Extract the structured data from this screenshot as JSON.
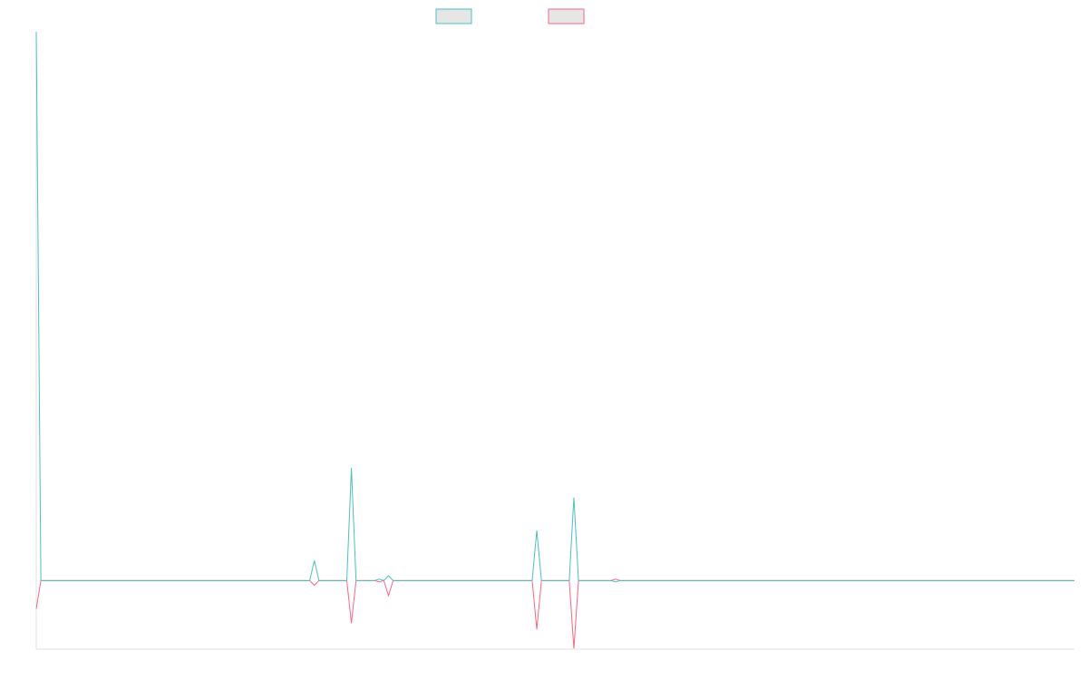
{
  "chart_data": {
    "type": "line",
    "categories": [
      null,
      null,
      null,
      null,
      null,
      null,
      null,
      null,
      null,
      null,
      null,
      null,
      null,
      null,
      null,
      null,
      null,
      null,
      null,
      null,
      null,
      null,
      null,
      null,
      null,
      null,
      null,
      null,
      null,
      null,
      null,
      null,
      null,
      null,
      null,
      null,
      null,
      null,
      null,
      null,
      null,
      null,
      null,
      null,
      null,
      null,
      null,
      null,
      null,
      null,
      null,
      null,
      null,
      null,
      null,
      null,
      null,
      null,
      null,
      null,
      null,
      null,
      null,
      null,
      null,
      null,
      null,
      null,
      null,
      null,
      null,
      null,
      null,
      null,
      null,
      null,
      null,
      null,
      null,
      null,
      null,
      null,
      null,
      null,
      null,
      null,
      null,
      null,
      null,
      null,
      null,
      null,
      null,
      null,
      null,
      null,
      null,
      null,
      null,
      null,
      null,
      null,
      null,
      null,
      null,
      null,
      null,
      null,
      null,
      null,
      null,
      null,
      null,
      null,
      null,
      null,
      null,
      null,
      null,
      null,
      null,
      null,
      null,
      null,
      null,
      null,
      null,
      null,
      null,
      null,
      null,
      null,
      null,
      null,
      null,
      null,
      null,
      null,
      null,
      null,
      null,
      null,
      null,
      null,
      null,
      null,
      null,
      null,
      null,
      null,
      null,
      null,
      null,
      null,
      null,
      null,
      null,
      null,
      null,
      null,
      null,
      null,
      null,
      null,
      null,
      null,
      null,
      null,
      null,
      null,
      null,
      null,
      null,
      null,
      null,
      null,
      null,
      null,
      null,
      null,
      null,
      null,
      null,
      null,
      null,
      null,
      null,
      null,
      null,
      null,
      null,
      null,
      null,
      null,
      null,
      null,
      null,
      null,
      null,
      null,
      null,
      null,
      null,
      null,
      null,
      null,
      null,
      null,
      null,
      null,
      null,
      null,
      null,
      null,
      null,
      null,
      null,
      null,
      null,
      null,
      null,
      null,
      null,
      null,
      null
    ],
    "series": [
      {
        "color": "#4bc0c0",
        "values": [
          800,
          0,
          0,
          0,
          0,
          0,
          0,
          0,
          0,
          0,
          0,
          0,
          0,
          0,
          0,
          0,
          0,
          0,
          0,
          0,
          0,
          0,
          0,
          0,
          0,
          0,
          0,
          0,
          0,
          0,
          0,
          0,
          0,
          0,
          0,
          0,
          0,
          0,
          0,
          0,
          0,
          0,
          0,
          0,
          0,
          0,
          0,
          0,
          0,
          0,
          0,
          0,
          0,
          0,
          0,
          0,
          0,
          0,
          0,
          0,
          29,
          0,
          0,
          0,
          0,
          0,
          0,
          0,
          164,
          0,
          0,
          0,
          0,
          0,
          2,
          0,
          7,
          0,
          0,
          0,
          0,
          0,
          0,
          0,
          0,
          0,
          0,
          0,
          0,
          0,
          0,
          0,
          0,
          0,
          0,
          0,
          0,
          0,
          0,
          0,
          0,
          0,
          0,
          0,
          0,
          0,
          0,
          0,
          73,
          0,
          0,
          0,
          0,
          0,
          0,
          0,
          121,
          0,
          0,
          0,
          0,
          0,
          0,
          0,
          0,
          -2,
          0,
          0,
          0,
          0,
          0,
          0,
          0,
          0,
          0,
          0,
          0,
          0,
          0,
          0,
          0,
          0,
          0,
          0,
          0,
          0,
          0,
          0,
          0,
          0,
          0,
          0,
          0,
          0,
          0,
          0,
          0,
          0,
          0,
          0,
          0,
          0,
          0,
          0,
          0,
          0,
          0,
          0,
          0,
          0,
          0,
          0,
          0,
          0,
          0,
          0,
          0,
          0,
          0,
          0,
          0,
          0,
          0,
          0,
          0,
          0,
          0,
          0,
          0,
          0,
          0,
          0,
          0,
          0,
          0,
          0,
          0,
          0,
          0,
          0,
          0,
          0,
          0,
          0,
          0,
          0,
          0,
          0,
          0,
          0,
          0,
          0,
          0,
          0,
          0,
          0,
          0,
          0,
          0,
          0,
          0,
          0,
          0,
          0,
          0
        ]
      },
      {
        "color": "#ff6384",
        "values": [
          -41,
          0,
          0,
          0,
          0,
          0,
          0,
          0,
          0,
          0,
          0,
          0,
          0,
          0,
          0,
          0,
          0,
          0,
          0,
          0,
          0,
          0,
          0,
          0,
          0,
          0,
          0,
          0,
          0,
          0,
          0,
          0,
          0,
          0,
          0,
          0,
          0,
          0,
          0,
          0,
          0,
          0,
          0,
          0,
          0,
          0,
          0,
          0,
          0,
          0,
          0,
          0,
          0,
          0,
          0,
          0,
          0,
          0,
          0,
          0,
          -7,
          0,
          0,
          0,
          0,
          0,
          0,
          0,
          -62,
          0,
          0,
          0,
          0,
          0,
          -2,
          0,
          -22,
          0,
          0,
          0,
          0,
          0,
          0,
          0,
          0,
          0,
          0,
          0,
          0,
          0,
          0,
          0,
          0,
          0,
          0,
          0,
          0,
          0,
          0,
          0,
          0,
          0,
          0,
          0,
          0,
          0,
          0,
          0,
          -71,
          0,
          0,
          0,
          0,
          0,
          0,
          0,
          -99,
          0,
          0,
          0,
          0,
          0,
          0,
          0,
          0,
          2,
          0,
          0,
          0,
          0,
          0,
          0,
          0,
          0,
          0,
          0,
          0,
          0,
          0,
          0,
          0,
          0,
          0,
          0,
          0,
          0,
          0,
          0,
          0,
          0,
          0,
          0,
          0,
          0,
          0,
          0,
          0,
          0,
          0,
          0,
          0,
          0,
          0,
          0,
          0,
          0,
          0,
          0,
          0,
          0,
          0,
          0,
          0,
          0,
          0,
          0,
          0,
          0,
          0,
          0,
          0,
          0,
          0,
          0,
          0,
          0,
          0,
          0,
          0,
          0,
          0,
          0,
          0,
          0,
          0,
          0,
          0,
          0,
          0,
          0,
          0,
          0,
          0,
          0,
          0,
          0,
          0,
          0,
          0,
          0,
          0,
          0,
          0,
          0,
          0,
          0,
          0,
          0,
          0,
          0,
          0,
          0,
          0,
          0,
          0
        ]
      }
    ],
    "ylim": [
      -100,
      800
    ]
  }
}
